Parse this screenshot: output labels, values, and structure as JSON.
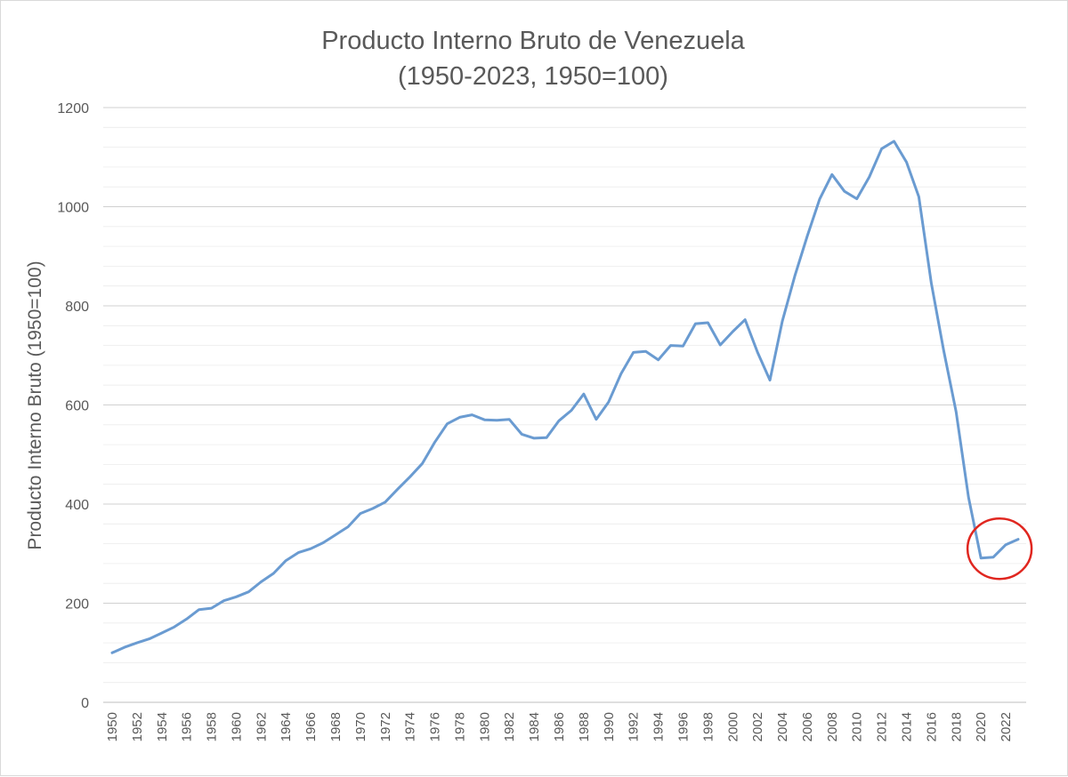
{
  "chart_data": {
    "type": "line",
    "title": [
      "Producto Interno Bruto de Venezuela",
      "(1950-2023, 1950=100)"
    ],
    "ylabel": "Producto Interno Bruto (1950=100)",
    "xlabel": "",
    "ylim": [
      0,
      1200
    ],
    "y_ticks": [
      "0",
      "200",
      "400",
      "600",
      "800",
      "1000",
      "1200"
    ],
    "x_tick_labels": [
      "1950",
      "1952",
      "1954",
      "1956",
      "1958",
      "1960",
      "1962",
      "1964",
      "1966",
      "1968",
      "1970",
      "1972",
      "1974",
      "1976",
      "1978",
      "1980",
      "1982",
      "1984",
      "1986",
      "1988",
      "1990",
      "1992",
      "1994",
      "1996",
      "1998",
      "2000",
      "2002",
      "2004",
      "2006",
      "2008",
      "2010",
      "2012",
      "2014",
      "2016",
      "2018",
      "2020",
      "2022"
    ],
    "grid": "horizontal major and minor",
    "legend": "none",
    "line_color": "#6a9bd1",
    "highlight": {
      "shape": "circle",
      "color": "#e0261f",
      "years": [
        2020,
        2023
      ]
    },
    "series": [
      {
        "x": [
          1950,
          1951,
          1952,
          1953,
          1954,
          1955,
          1956,
          1957,
          1958,
          1959,
          1960,
          1961,
          1962,
          1963,
          1964,
          1965,
          1966,
          1967,
          1968,
          1969,
          1970,
          1971,
          1972,
          1973,
          1974,
          1975,
          1976,
          1977,
          1978,
          1979,
          1980,
          1981,
          1982,
          1983,
          1984,
          1985,
          1986,
          1987,
          1988,
          1989,
          1990,
          1991,
          1992,
          1993,
          1994,
          1995,
          1996,
          1997,
          1998,
          1999,
          2000,
          2001,
          2002,
          2003,
          2004,
          2005,
          2006,
          2007,
          2008,
          2009,
          2010,
          2011,
          2012,
          2013,
          2014,
          2015,
          2016,
          2017,
          2018,
          2019,
          2020,
          2021,
          2022,
          2023
        ],
        "values": [
          100,
          111,
          120,
          128,
          140,
          152,
          168,
          187,
          190,
          205,
          213,
          223,
          243,
          260,
          286,
          302,
          310,
          322,
          338,
          354,
          381,
          391,
          404,
          430,
          455,
          482,
          525,
          562,
          575,
          580,
          570,
          569,
          571,
          541,
          533,
          534,
          568,
          589,
          622,
          571,
          606,
          663,
          706,
          708,
          691,
          720,
          719,
          764,
          766,
          721,
          748,
          772,
          706,
          650,
          769,
          860,
          940,
          1015,
          1065,
          1031,
          1016,
          1060,
          1117,
          1132,
          1090,
          1020,
          846,
          710,
          586,
          414,
          291,
          293,
          318,
          329
        ]
      }
    ]
  }
}
